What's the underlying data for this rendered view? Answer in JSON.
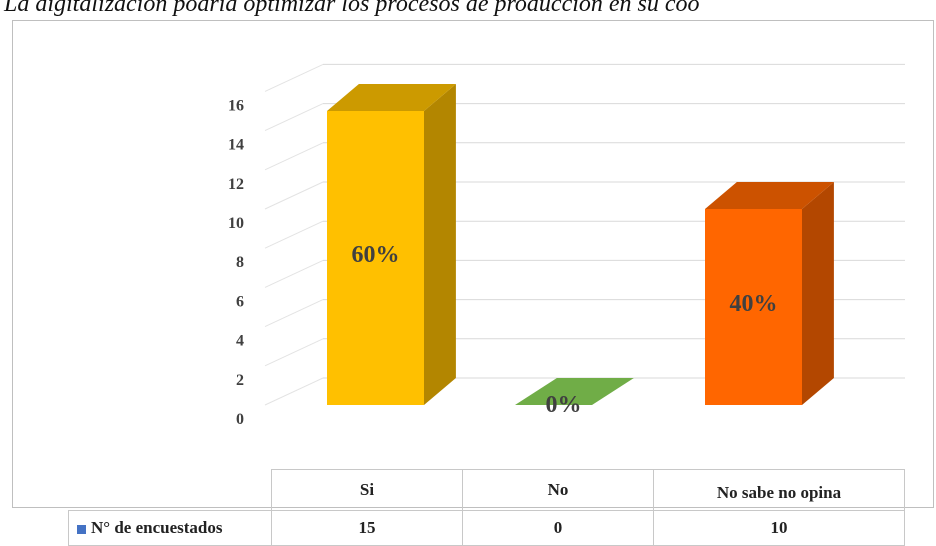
{
  "page": {
    "title": "La digitalización podría optimizar los procesos de producción en su coo"
  },
  "chart_data": {
    "type": "bar",
    "style": "3d-column",
    "categories": [
      "Si",
      "No",
      "No sabe no opina"
    ],
    "series": [
      {
        "name": "N° de encuestados",
        "values": [
          15,
          0,
          10
        ],
        "data_labels": [
          "60%",
          "0%",
          "40%"
        ],
        "colors": [
          "#ffc000",
          "#70ad47",
          "#ff6600"
        ]
      }
    ],
    "y_ticks": [
      0,
      2,
      4,
      6,
      8,
      10,
      12,
      14,
      16
    ],
    "ylim": [
      0,
      16
    ],
    "grid": true,
    "data_table": true,
    "legend_key_color": "#4472c4"
  }
}
